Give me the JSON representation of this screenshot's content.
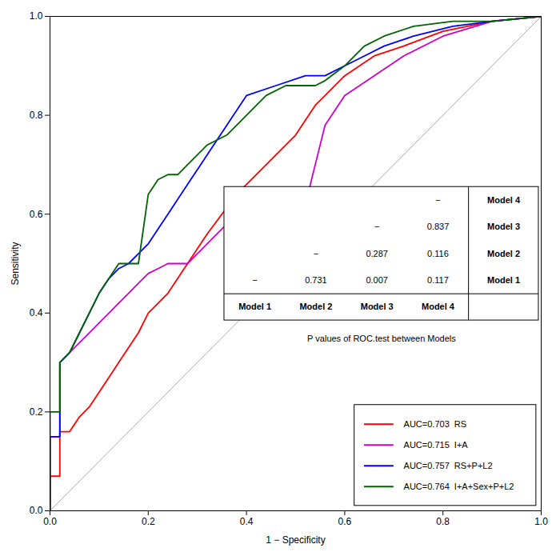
{
  "chart_data": {
    "type": "line",
    "xlabel": "1 − Specificity",
    "ylabel": "Sensitivity",
    "xlim": [
      0.0,
      1.0
    ],
    "ylim": [
      0.0,
      1.0
    ],
    "xticks": [
      {
        "value": 0.0,
        "label": "0.0"
      },
      0.2,
      0.4,
      0.6,
      0.8,
      {
        "value": 1.0,
        "label": "1.0"
      }
    ],
    "yticks": [
      {
        "value": 0.0,
        "label": "0.0"
      },
      0.2,
      0.4,
      0.6,
      0.8,
      {
        "value": 1.0,
        "label": "1.0"
      }
    ],
    "grid": false,
    "legend": "lower right",
    "reference_line": {
      "color": "#AAAAAA",
      "x": [
        0,
        1
      ],
      "values": [
        0,
        1
      ]
    },
    "series": [
      {
        "name": "AUC=0.703  RS",
        "color": "#FF0000",
        "x": [
          0.0,
          0.0,
          0.02,
          0.02,
          0.04,
          0.06,
          0.08,
          0.1,
          0.12,
          0.14,
          0.16,
          0.18,
          0.2,
          0.24,
          0.28,
          0.32,
          0.38,
          0.44,
          0.5,
          0.54,
          0.56,
          0.6,
          0.66,
          0.72,
          0.8,
          0.9,
          1.0
        ],
        "values": [
          0.0,
          0.07,
          0.07,
          0.16,
          0.16,
          0.19,
          0.21,
          0.24,
          0.27,
          0.3,
          0.33,
          0.36,
          0.4,
          0.44,
          0.5,
          0.56,
          0.64,
          0.7,
          0.76,
          0.82,
          0.84,
          0.88,
          0.92,
          0.94,
          0.97,
          0.99,
          1.0
        ]
      },
      {
        "name": "AUC=0.715  I+A",
        "color": "#CC00CC",
        "x": [
          0.0,
          0.0,
          0.02,
          0.02,
          0.04,
          0.06,
          0.08,
          0.1,
          0.12,
          0.14,
          0.16,
          0.18,
          0.2,
          0.22,
          0.24,
          0.26,
          0.28,
          0.3,
          0.34,
          0.38,
          0.42,
          0.46,
          0.5,
          0.52,
          0.56,
          0.6,
          0.66,
          0.72,
          0.8,
          0.9,
          1.0
        ],
        "values": [
          0.0,
          0.15,
          0.15,
          0.3,
          0.32,
          0.34,
          0.36,
          0.38,
          0.4,
          0.42,
          0.44,
          0.46,
          0.48,
          0.49,
          0.5,
          0.5,
          0.5,
          0.52,
          0.56,
          0.6,
          0.6,
          0.6,
          0.6,
          0.62,
          0.78,
          0.84,
          0.88,
          0.92,
          0.96,
          0.99,
          1.0
        ]
      },
      {
        "name": "AUC=0.757  RS+P+L2",
        "color": "#0000FF",
        "x": [
          0.0,
          0.0,
          0.02,
          0.02,
          0.04,
          0.06,
          0.08,
          0.1,
          0.12,
          0.14,
          0.16,
          0.18,
          0.2,
          0.24,
          0.28,
          0.32,
          0.36,
          0.4,
          0.46,
          0.52,
          0.56,
          0.6,
          0.64,
          0.68,
          0.74,
          0.82,
          0.9,
          1.0
        ],
        "values": [
          0.0,
          0.15,
          0.15,
          0.3,
          0.32,
          0.36,
          0.4,
          0.44,
          0.47,
          0.49,
          0.5,
          0.52,
          0.54,
          0.6,
          0.66,
          0.72,
          0.78,
          0.84,
          0.86,
          0.88,
          0.88,
          0.9,
          0.92,
          0.94,
          0.96,
          0.98,
          0.99,
          1.0
        ]
      },
      {
        "name": "AUC=0.764  I+A+Sex+P+L2",
        "color": "#006400",
        "x": [
          0.0,
          0.0,
          0.02,
          0.02,
          0.04,
          0.06,
          0.08,
          0.1,
          0.12,
          0.14,
          0.16,
          0.18,
          0.2,
          0.22,
          0.24,
          0.26,
          0.28,
          0.32,
          0.36,
          0.4,
          0.44,
          0.48,
          0.52,
          0.54,
          0.56,
          0.6,
          0.64,
          0.68,
          0.74,
          0.82,
          0.9,
          1.0
        ],
        "values": [
          0.0,
          0.2,
          0.2,
          0.3,
          0.32,
          0.36,
          0.4,
          0.44,
          0.47,
          0.5,
          0.5,
          0.5,
          0.64,
          0.67,
          0.68,
          0.68,
          0.7,
          0.74,
          0.76,
          0.8,
          0.84,
          0.86,
          0.86,
          0.86,
          0.87,
          0.9,
          0.94,
          0.96,
          0.98,
          0.99,
          0.99,
          1.0
        ]
      }
    ],
    "table": {
      "caption": "P values of ROC.test between Models",
      "rows": [
        "Model 4",
        "Model 3",
        "Model 2",
        "Model 1"
      ],
      "columns": [
        "Model 1",
        "Model 2",
        "Model 3",
        "Model 4"
      ],
      "cells": [
        [
          null,
          null,
          null,
          "−"
        ],
        [
          null,
          null,
          "−",
          "0.837"
        ],
        [
          null,
          "−",
          "0.287",
          "0.116"
        ],
        [
          "−",
          "0.731",
          "0.007",
          "0.117"
        ]
      ]
    }
  }
}
